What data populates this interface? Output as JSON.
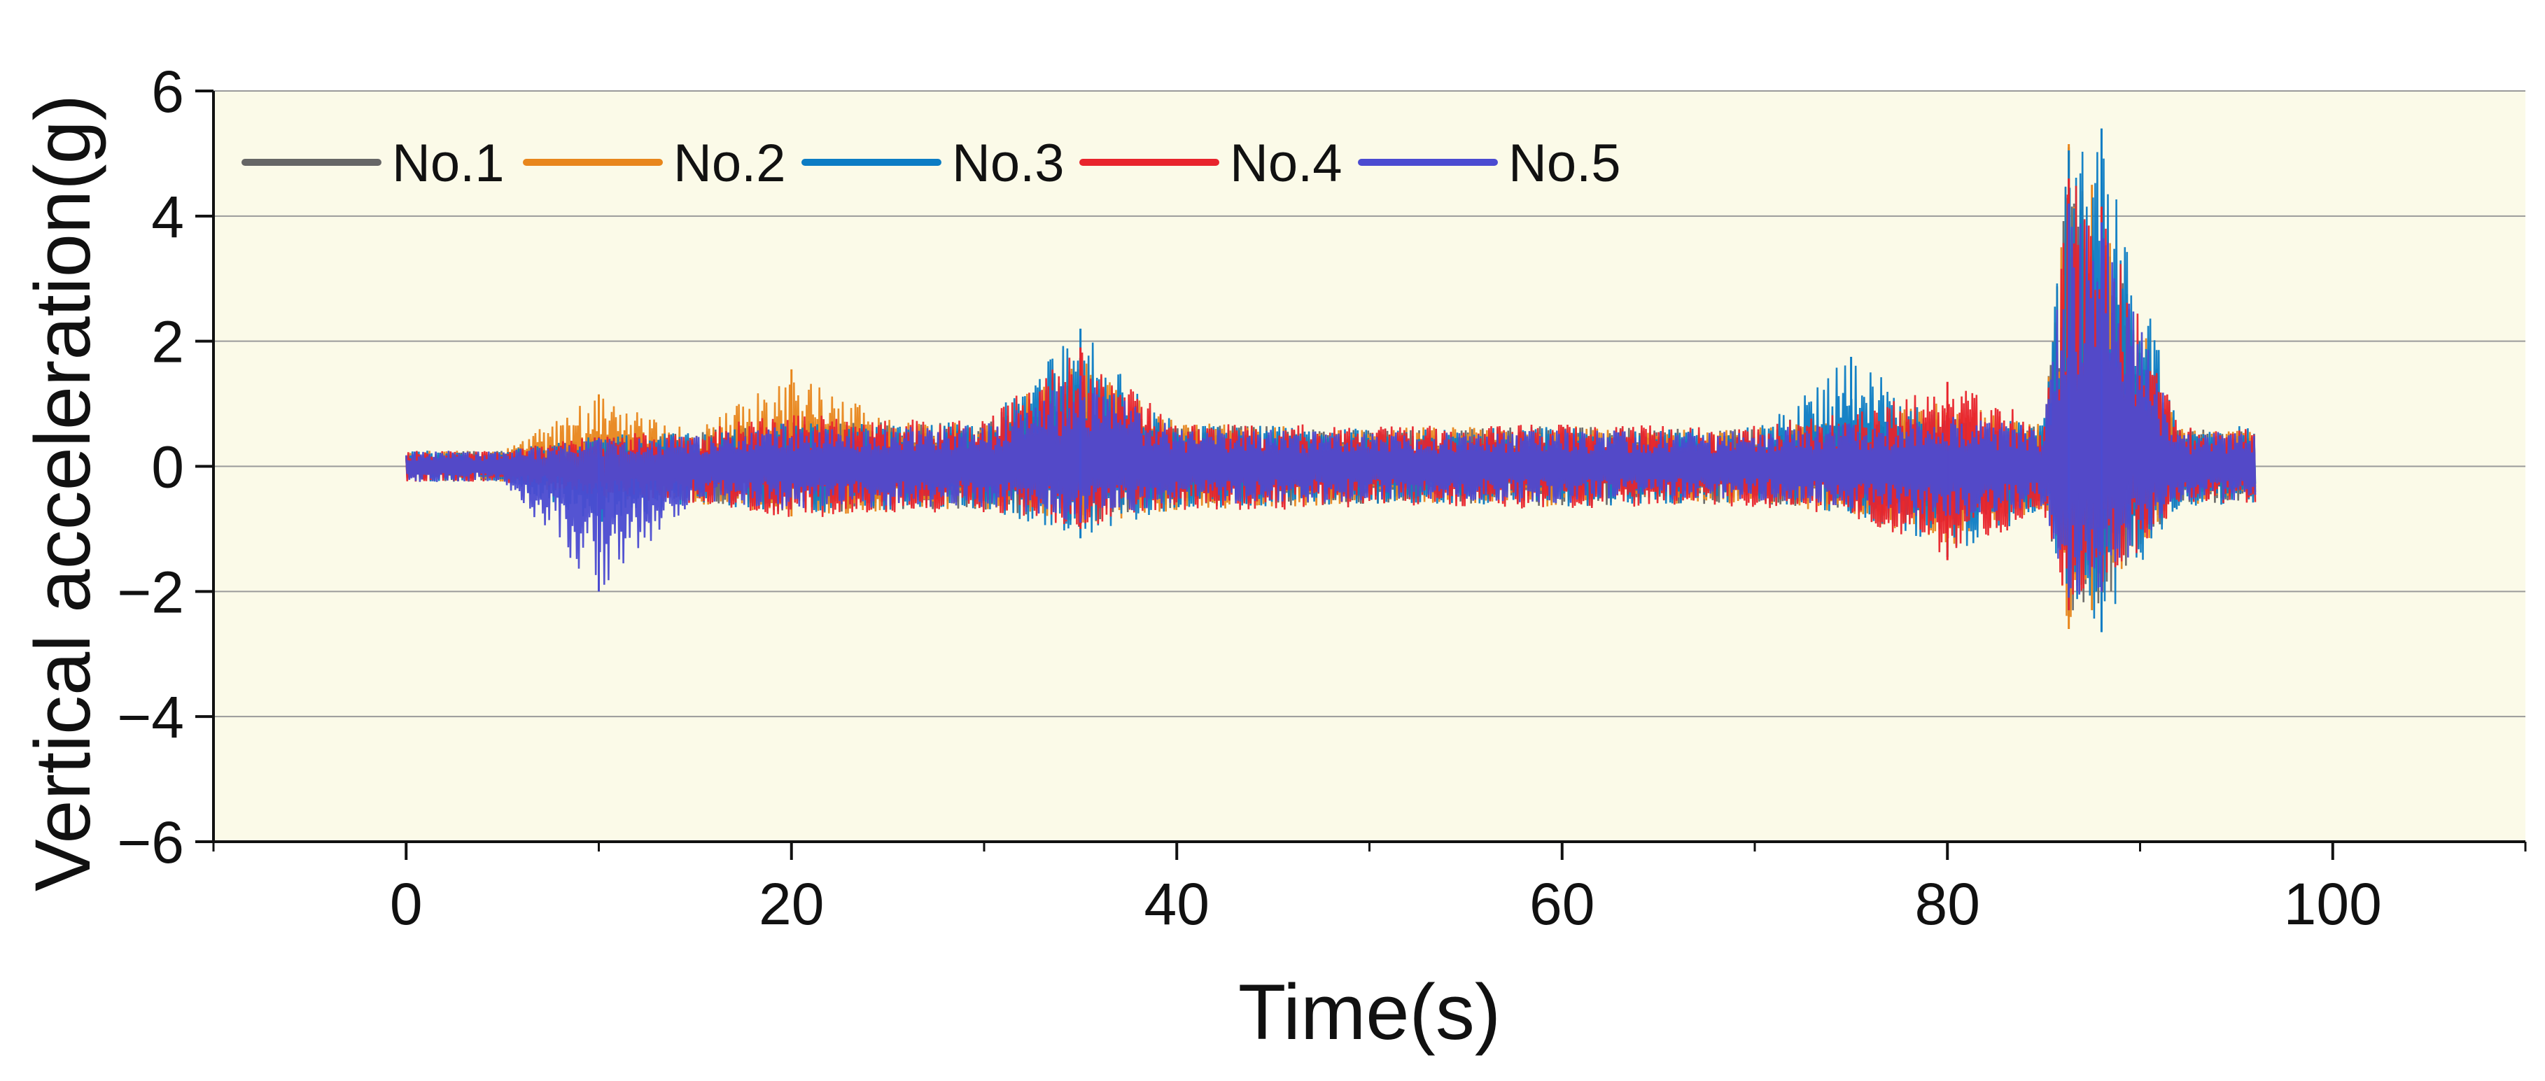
{
  "chart_data": {
    "type": "line",
    "title": "",
    "xlabel": "Time(s)",
    "ylabel": "Vertical acceleration(g)",
    "xlim": [
      -10,
      110
    ],
    "ylim": [
      -6,
      6
    ],
    "xticks": [
      0,
      20,
      40,
      60,
      80,
      100
    ],
    "xtick_labels": [
      "0",
      "20",
      "40",
      "60",
      "80",
      "100"
    ],
    "yticks": [
      -6,
      -4,
      -2,
      0,
      2,
      4,
      6
    ],
    "ytick_labels": [
      "−6",
      "−4",
      "−2",
      "0",
      "2",
      "4",
      "6"
    ],
    "grid": "horizontal",
    "legend_position": "top-left",
    "background_color": "#fbfae8",
    "series": [
      {
        "name": "No.1",
        "color": "#666666",
        "x": [
          0,
          5,
          10,
          15,
          20,
          25,
          30,
          35,
          40,
          45,
          50,
          55,
          60,
          65,
          70,
          75,
          80,
          85,
          86.3,
          88,
          92,
          96
        ],
        "y_max": [
          0.25,
          0.25,
          0.45,
          0.55,
          0.75,
          0.7,
          0.7,
          0.95,
          0.65,
          0.65,
          0.6,
          0.6,
          0.65,
          0.6,
          0.6,
          0.7,
          0.8,
          0.65,
          5.1,
          4.1,
          0.6,
          0.6
        ],
        "y_min": [
          -0.25,
          -0.25,
          -0.45,
          -0.55,
          -0.75,
          -0.7,
          -0.7,
          -0.9,
          -0.65,
          -0.65,
          -0.6,
          -0.6,
          -0.65,
          -0.6,
          -0.6,
          -0.7,
          -0.85,
          -0.65,
          -2.4,
          -2.2,
          -0.6,
          -0.6
        ]
      },
      {
        "name": "No.2",
        "color": "#e8861c",
        "x": [
          0,
          5,
          10,
          15,
          20,
          25,
          30,
          35,
          40,
          45,
          50,
          55,
          60,
          65,
          70,
          75,
          80,
          85,
          86.3,
          87.5,
          92,
          96
        ],
        "y_max": [
          0.25,
          0.25,
          1.15,
          0.55,
          1.55,
          0.75,
          0.7,
          1.75,
          0.7,
          0.65,
          0.6,
          0.65,
          0.65,
          0.6,
          0.65,
          0.75,
          1.05,
          0.7,
          5.15,
          4.5,
          0.6,
          0.6
        ],
        "y_min": [
          -0.25,
          -0.25,
          -0.55,
          -0.6,
          -0.8,
          -0.75,
          -0.7,
          -0.95,
          -0.7,
          -0.65,
          -0.6,
          -0.6,
          -0.65,
          -0.6,
          -0.6,
          -0.75,
          -1.3,
          -0.7,
          -2.6,
          -2.3,
          -0.6,
          -0.6
        ]
      },
      {
        "name": "No.3",
        "color": "#0c7cc4",
        "x": [
          0,
          5,
          10,
          15,
          20,
          25,
          30,
          35,
          40,
          45,
          50,
          55,
          60,
          65,
          70,
          75,
          80,
          85,
          86.3,
          88,
          92,
          96
        ],
        "y_max": [
          0.25,
          0.25,
          0.5,
          0.55,
          0.7,
          0.7,
          0.7,
          2.2,
          0.65,
          0.65,
          0.6,
          0.6,
          0.65,
          0.6,
          0.65,
          1.75,
          0.8,
          0.7,
          5.05,
          5.4,
          0.65,
          0.65
        ],
        "y_min": [
          -0.25,
          -0.25,
          -0.95,
          -0.6,
          -0.75,
          -0.7,
          -0.7,
          -1.15,
          -0.7,
          -0.65,
          -0.6,
          -0.6,
          -0.65,
          -0.6,
          -0.6,
          -0.75,
          -1.45,
          -0.7,
          -2.3,
          -2.65,
          -0.65,
          -0.65
        ]
      },
      {
        "name": "No.4",
        "color": "#e8242c",
        "x": [
          0,
          5,
          10,
          15,
          20,
          25,
          30,
          35,
          40,
          45,
          50,
          55,
          60,
          65,
          70,
          75,
          80,
          85,
          86.3,
          88,
          92,
          96
        ],
        "y_max": [
          0.25,
          0.25,
          0.5,
          0.6,
          0.85,
          0.75,
          0.75,
          1.9,
          0.7,
          0.7,
          0.65,
          0.65,
          0.7,
          0.65,
          0.7,
          0.85,
          1.35,
          0.75,
          4.6,
          4.15,
          0.65,
          0.6
        ],
        "y_min": [
          -0.25,
          -0.25,
          -0.5,
          -0.6,
          -0.85,
          -0.75,
          -0.75,
          -1.0,
          -0.7,
          -0.7,
          -0.65,
          -0.65,
          -0.7,
          -0.65,
          -0.65,
          -0.8,
          -1.5,
          -0.75,
          -2.3,
          -2.0,
          -0.65,
          -0.6
        ]
      },
      {
        "name": "No.5",
        "color": "#4b4bd1",
        "x": [
          0,
          5,
          10,
          15,
          20,
          25,
          30,
          35,
          40,
          45,
          50,
          55,
          60,
          65,
          70,
          75,
          80,
          85,
          86.3,
          88,
          92,
          96
        ],
        "y_max": [
          0.25,
          0.25,
          0.45,
          0.5,
          0.7,
          0.65,
          0.65,
          1.45,
          0.6,
          0.6,
          0.55,
          0.55,
          0.6,
          0.55,
          0.6,
          0.7,
          0.8,
          0.65,
          4.2,
          3.9,
          0.55,
          0.55
        ],
        "y_min": [
          -0.25,
          -0.25,
          -2.0,
          -0.55,
          -0.7,
          -0.65,
          -0.65,
          -0.9,
          -0.6,
          -0.6,
          -0.55,
          -0.55,
          -0.6,
          -0.55,
          -0.55,
          -0.7,
          -0.85,
          -0.65,
          -2.1,
          -2.0,
          -0.55,
          -0.55
        ]
      }
    ]
  }
}
